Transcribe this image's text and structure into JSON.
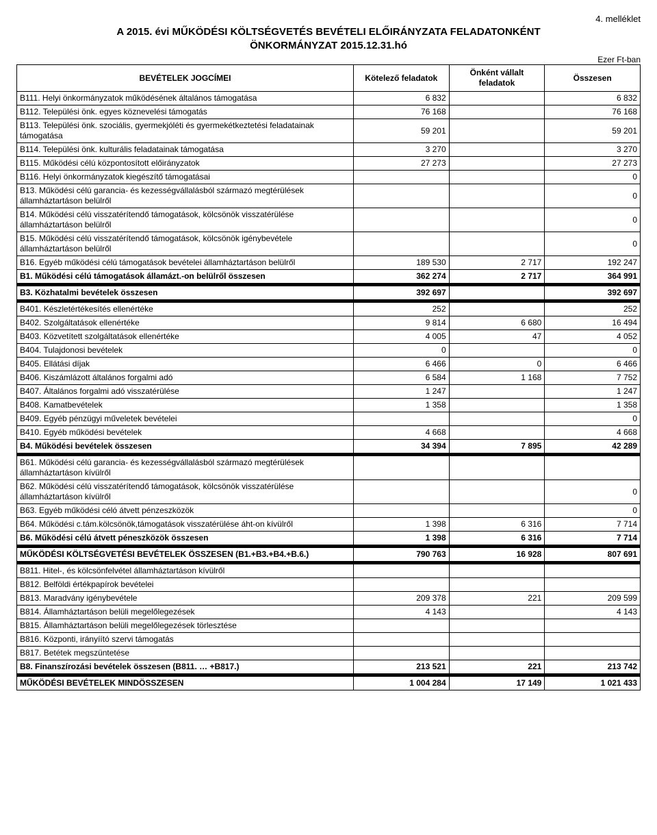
{
  "annex": "4. melléklet",
  "title_line1": "A 2015. évi MŰKÖDÉSI KÖLTSÉGVETÉS BEVÉTELI ELŐIRÁNYZATA FELADATONKÉNT",
  "title_line2": "ÖNKORMÁNYZAT 2015.12.31.hó",
  "unit": "Ezer Ft-ban",
  "columns": {
    "label": "BEVÉTELEK JOGCÍMEI",
    "c1": "Kötelező feladatok",
    "c2": "Önként vállalt feladatok",
    "c3": "Összesen"
  },
  "rows": [
    {
      "label": "B111. Helyi önkormányzatok működésének általános támogatása",
      "c1": "6 832",
      "c2": "",
      "c3": "6 832"
    },
    {
      "label": "B112. Települési önk. egyes köznevelési támogatás",
      "c1": "76 168",
      "c2": "",
      "c3": "76 168"
    },
    {
      "label": "B113. Települési önk. szociális, gyermekjóléti és gyermekétkeztetési feladatainak támogatása",
      "c1": "59 201",
      "c2": "",
      "c3": "59 201"
    },
    {
      "label": "B114. Települési önk. kulturális feladatainak támogatása",
      "c1": "3 270",
      "c2": "",
      "c3": "3 270"
    },
    {
      "label": "B115. Működési célú központosított előirányzatok",
      "c1": "27 273",
      "c2": "",
      "c3": "27 273"
    },
    {
      "label": "B116. Helyi önkormányzatok kiegészítő támogatásai",
      "c1": "",
      "c2": "",
      "c3": "0"
    },
    {
      "label": "B13. Működési célú garancia- és kezességvállalásból származó megtérülések államháztartáson belülről",
      "c1": "",
      "c2": "",
      "c3": "0"
    },
    {
      "label": "B14. Működési célú visszatérítendő támogatások, kölcsönök visszatérülése államháztartáson belülről",
      "c1": "",
      "c2": "",
      "c3": "0"
    },
    {
      "label": "B15. Működési célú visszatérítendő támogatások, kölcsönök igénybevétele államháztartáson belülről",
      "c1": "",
      "c2": "",
      "c3": "0"
    },
    {
      "label": "B16. Egyéb működési célú támogatások bevételei államháztartáson belülről",
      "c1": "189 530",
      "c2": "2 717",
      "c3": "192 247"
    },
    {
      "label": "B1. Működési célú támogatások államázt.-on belülről összesen",
      "c1": "362 274",
      "c2": "2 717",
      "c3": "364 991",
      "bold": true
    },
    {
      "spacer": true
    },
    {
      "label": "B3. Közhatalmi bevételek összesen",
      "c1": "392 697",
      "c2": "",
      "c3": "392 697",
      "bold": true
    },
    {
      "spacer": true
    },
    {
      "label": "B401. Készletértékesítés  ellenértéke",
      "c1": "252",
      "c2": "",
      "c3": "252"
    },
    {
      "label": "B402. Szolgáltatások ellenértéke",
      "c1": "9 814",
      "c2": "6 680",
      "c3": "16 494"
    },
    {
      "label": "B403. Közvetített szolgáltatások ellenértéke",
      "c1": "4 005",
      "c2": "47",
      "c3": "4 052"
    },
    {
      "label": "B404. Tulajdonosi bevételek",
      "c1": "0",
      "c2": "",
      "c3": "0"
    },
    {
      "label": "B405. Ellátási díjak",
      "c1": "6 466",
      "c2": "0",
      "c3": "6 466"
    },
    {
      "label": "B406. Kiszámlázott általános forgalmi adó",
      "c1": "6 584",
      "c2": "1 168",
      "c3": "7 752"
    },
    {
      "label": "B407. Általános forgalmi adó visszatérülése",
      "c1": "1 247",
      "c2": "",
      "c3": "1 247"
    },
    {
      "label": "B408. Kamatbevételek",
      "c1": "1 358",
      "c2": "",
      "c3": "1 358"
    },
    {
      "label": "B409. Egyéb pénzügyi műveletek bevételei",
      "c1": "",
      "c2": "",
      "c3": "0"
    },
    {
      "label": "B410. Egyéb működési bevételek",
      "c1": "4 668",
      "c2": "",
      "c3": "4 668"
    },
    {
      "label": "B4. Működési bevételek összesen",
      "c1": "34 394",
      "c2": "7 895",
      "c3": "42 289",
      "bold": true
    },
    {
      "spacer": true
    },
    {
      "label": "B61. Működési célú garancia- és kezességvállalásból származó megtérülések államháztartáson kívülről",
      "c1": "",
      "c2": "",
      "c3": ""
    },
    {
      "label": "B62. Működési célú visszatérítendő támogatások, kölcsönök visszatérülése államháztartáson kívülről",
      "c1": "",
      "c2": "",
      "c3": "0"
    },
    {
      "label": "B63. Egyéb működési céló átvett pénzeszközök",
      "c1": "",
      "c2": "",
      "c3": "0"
    },
    {
      "label": "B64. Működési c.tám.kölcsönök,támogatások visszatérülése áht-on kívülről",
      "c1": "1 398",
      "c2": "6 316",
      "c3": "7 714"
    },
    {
      "label": "B6. Működési célú átvett péneszközök összesen",
      "c1": "1 398",
      "c2": "6 316",
      "c3": "7 714",
      "bold": true
    },
    {
      "spacer": true
    },
    {
      "label": "MŰKÖDÉSI KÖLTSÉGVETÉSI BEVÉTELEK ÖSSZESEN (B1.+B3.+B4.+B.6.)",
      "c1": "790 763",
      "c2": "16 928",
      "c3": "807 691",
      "bold": true
    },
    {
      "spacer": true
    },
    {
      "label": "B811. Hitel-, és kölcsönfelvétel államháztartáson kívülről",
      "c1": "",
      "c2": "",
      "c3": ""
    },
    {
      "label": "B812. Belföldi értékpapírok bevételei",
      "c1": "",
      "c2": "",
      "c3": ""
    },
    {
      "label": "B813. Maradvány igénybevétele",
      "c1": "209 378",
      "c2": "221",
      "c3": "209 599"
    },
    {
      "label": "B814. Államháztartáson belüli megelőlegezések",
      "c1": "4 143",
      "c2": "",
      "c3": "4 143"
    },
    {
      "label": "B815. Államháztartáson belüli megelőlegezések törlesztése",
      "c1": "",
      "c2": "",
      "c3": ""
    },
    {
      "label": "B816. Központi, irányíító szervi támogatás",
      "c1": "",
      "c2": "",
      "c3": ""
    },
    {
      "label": "B817. Betétek megszüntetése",
      "c1": "",
      "c2": "",
      "c3": ""
    },
    {
      "label": "B8. Finanszírozási bevételek összesen (B811. … +B817.)",
      "c1": "213 521",
      "c2": "221",
      "c3": "213 742",
      "bold": true
    },
    {
      "spacer": true
    },
    {
      "label": "MŰKÖDÉSI BEVÉTELEK MINDÖSSZESEN",
      "c1": "1 004 284",
      "c2": "17 149",
      "c3": "1 021 433",
      "bold": true
    }
  ]
}
